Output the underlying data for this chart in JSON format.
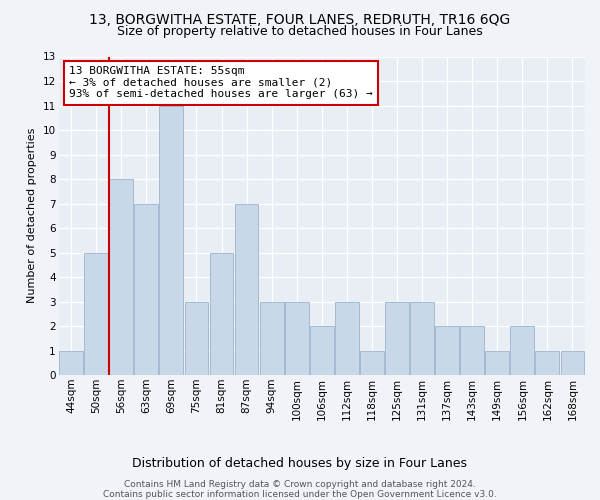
{
  "title": "13, BORGWITHA ESTATE, FOUR LANES, REDRUTH, TR16 6QG",
  "subtitle": "Size of property relative to detached houses in Four Lanes",
  "xlabel": "Distribution of detached houses by size in Four Lanes",
  "ylabel": "Number of detached properties",
  "bar_labels": [
    "44sqm",
    "50sqm",
    "56sqm",
    "63sqm",
    "69sqm",
    "75sqm",
    "81sqm",
    "87sqm",
    "94sqm",
    "100sqm",
    "106sqm",
    "112sqm",
    "118sqm",
    "125sqm",
    "131sqm",
    "137sqm",
    "143sqm",
    "149sqm",
    "156sqm",
    "162sqm",
    "168sqm"
  ],
  "bar_values": [
    1,
    5,
    8,
    7,
    11,
    3,
    5,
    7,
    3,
    3,
    2,
    3,
    1,
    3,
    3,
    2,
    2,
    1,
    2,
    1,
    1
  ],
  "bar_color": "#c8d8e8",
  "bar_edge_color": "#9ab5cc",
  "annotation_title": "13 BORGWITHA ESTATE: 55sqm",
  "annotation_line1": "← 3% of detached houses are smaller (2)",
  "annotation_line2": "93% of semi-detached houses are larger (63) →",
  "annotation_box_color": "#ffffff",
  "annotation_box_edge": "#cc0000",
  "vline_color": "#cc0000",
  "ylim": [
    0,
    13
  ],
  "yticks": [
    0,
    1,
    2,
    3,
    4,
    5,
    6,
    7,
    8,
    9,
    10,
    11,
    12,
    13
  ],
  "footnote1": "Contains HM Land Registry data © Crown copyright and database right 2024.",
  "footnote2": "Contains public sector information licensed under the Open Government Licence v3.0.",
  "bg_color": "#f0f4f8",
  "plot_bg_color": "#e8eef4",
  "grid_color": "#ffffff",
  "title_fontsize": 10,
  "subtitle_fontsize": 9,
  "ylabel_fontsize": 8,
  "xlabel_fontsize": 9,
  "tick_fontsize": 7.5,
  "annot_fontsize": 8,
  "footnote_fontsize": 6.5
}
